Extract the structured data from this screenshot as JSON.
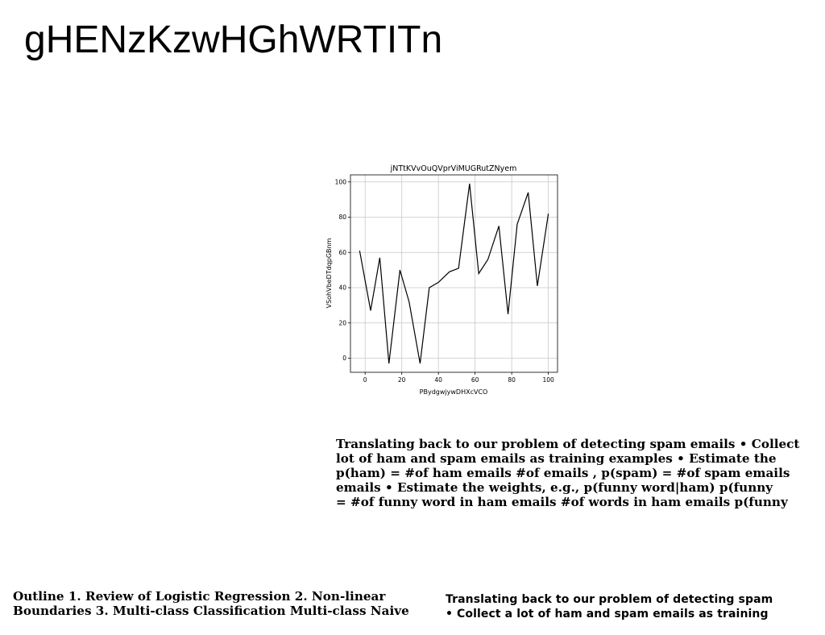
{
  "page": {
    "title": "gHENzKzwHGhWRTITn"
  },
  "chart_data": {
    "type": "line",
    "title": "jNTtKVvOuQVprViMUGRutZNyem",
    "xlabel": "PBydgwjywDHXcVCO",
    "ylabel": "VSohVbeDTdqpGBnm",
    "xlim": [
      -8,
      105
    ],
    "ylim": [
      -8,
      104
    ],
    "xticks": [
      0,
      20,
      40,
      60,
      80,
      100
    ],
    "yticks": [
      0,
      20,
      40,
      60,
      80,
      100
    ],
    "grid": true,
    "color": "#000000",
    "x": [
      -3,
      3,
      8,
      13,
      19,
      24,
      30,
      35,
      40,
      46,
      51,
      57,
      62,
      67,
      73,
      78,
      83,
      89,
      94,
      100
    ],
    "y": [
      61,
      27,
      57,
      -3,
      50,
      32,
      -3,
      40,
      43,
      49,
      51,
      99,
      48,
      56,
      75,
      25,
      76,
      94,
      41,
      82
    ]
  },
  "text": {
    "right_paragraph": "Translating back to our problem of detecting spam emails • Collect\nlot of ham and spam emails as training examples • Estimate the\np(ham) = #of ham emails #of emails , p(spam) = #of spam emails\nemails • Estimate the weights, e.g., p(funny word|ham) p(funny\n= #of funny word in ham emails #of words in ham emails p(funny",
    "bottom_left_paragraph": "Outline 1. Review of Logistic Regression 2. Non-linear\nBoundaries 3. Multi-class Classification Multi-class Naive",
    "bottom_right_paragraph": "Translating back to our problem of detecting spam\n• Collect a lot of ham and spam emails as training"
  }
}
